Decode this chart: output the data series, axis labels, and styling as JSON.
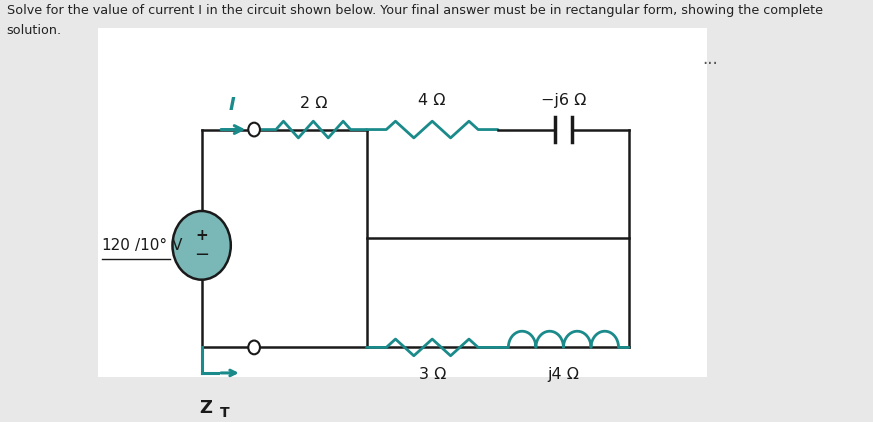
{
  "title_line1": "Solve for the value of current I in the circuit shown below. Your final answer must be in rectangular form, showing the complete",
  "title_line2": "solution.",
  "bg_color": "#e8e8e8",
  "circuit_bg": "#ffffff",
  "wire_color": "#1a1a1a",
  "teal_color": "#1a8a8a",
  "vs_color": "#7ab8b8",
  "label_4ohm": "4 Ω",
  "label_j6ohm": "−j6 Ω",
  "label_2ohm": "2 Ω",
  "label_3ohm": "3 Ω",
  "label_j4ohm": "j4 Ω",
  "label_voltage": "120",
  "label_angle": "/10° V",
  "label_I": "I",
  "ellipsis": "...",
  "title_color": "#222222",
  "label_color": "#1a1a1a"
}
